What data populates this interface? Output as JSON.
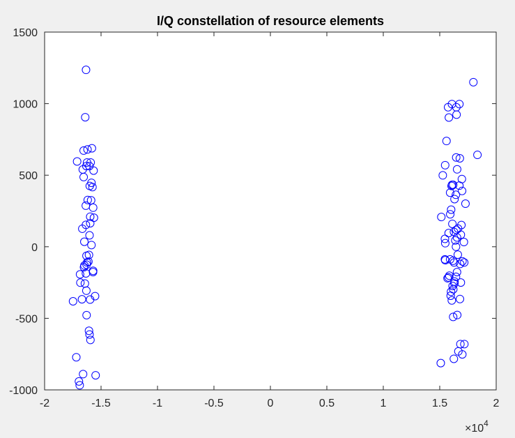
{
  "chart_data": {
    "type": "scatter",
    "title": "I/Q constellation of resource elements",
    "xlabel": "",
    "ylabel": "",
    "xlim": [
      -20000,
      20000
    ],
    "ylim": [
      -1000,
      1500
    ],
    "x_exponent_label": "×10",
    "x_exponent_power": "4",
    "x_ticks": [
      {
        "value": -20000,
        "label": "-2"
      },
      {
        "value": -15000,
        "label": "-1.5"
      },
      {
        "value": -10000,
        "label": "-1"
      },
      {
        "value": -5000,
        "label": "-0.5"
      },
      {
        "value": 0,
        "label": "0"
      },
      {
        "value": 5000,
        "label": "0.5"
      },
      {
        "value": 10000,
        "label": "1"
      },
      {
        "value": 15000,
        "label": "1.5"
      },
      {
        "value": 20000,
        "label": "2"
      }
    ],
    "y_ticks": [
      {
        "value": -1000,
        "label": "-1000"
      },
      {
        "value": -500,
        "label": "-500"
      },
      {
        "value": 0,
        "label": "0"
      },
      {
        "value": 500,
        "label": "500"
      },
      {
        "value": 1000,
        "label": "1000"
      },
      {
        "value": 1500,
        "label": "1500"
      }
    ],
    "grid": false,
    "marker": "circle",
    "marker_color": "#0000ff",
    "series": [
      {
        "name": "resource elements",
        "points": [
          [
            -16330,
            1236
          ],
          [
            -16400,
            905
          ],
          [
            -15810,
            688
          ],
          [
            -16200,
            680
          ],
          [
            -16540,
            672
          ],
          [
            -17120,
            596
          ],
          [
            -16240,
            589
          ],
          [
            -15920,
            589
          ],
          [
            -16300,
            564
          ],
          [
            -16030,
            564
          ],
          [
            -16620,
            540
          ],
          [
            -15660,
            532
          ],
          [
            -16540,
            487
          ],
          [
            -15850,
            447
          ],
          [
            -16000,
            425
          ],
          [
            -15760,
            417
          ],
          [
            -16180,
            327
          ],
          [
            -15880,
            325
          ],
          [
            -16350,
            287
          ],
          [
            -15700,
            273
          ],
          [
            -15960,
            210
          ],
          [
            -15630,
            203
          ],
          [
            -15960,
            164
          ],
          [
            -16340,
            153
          ],
          [
            -16660,
            126
          ],
          [
            -16020,
            80
          ],
          [
            -16480,
            35
          ],
          [
            -15850,
            12
          ],
          [
            -16070,
            -57
          ],
          [
            -16290,
            -63
          ],
          [
            -16120,
            -104
          ],
          [
            -16240,
            -110
          ],
          [
            -16280,
            -125
          ],
          [
            -16470,
            -131
          ],
          [
            -16510,
            -143
          ],
          [
            -15700,
            -168
          ],
          [
            -15710,
            -177
          ],
          [
            -16340,
            -186
          ],
          [
            -16860,
            -193
          ],
          [
            -16430,
            -257
          ],
          [
            -16830,
            -251
          ],
          [
            -16300,
            -307
          ],
          [
            -15530,
            -345
          ],
          [
            -16690,
            -367
          ],
          [
            -15970,
            -369
          ],
          [
            -17480,
            -381
          ],
          [
            -16280,
            -478
          ],
          [
            -16070,
            -587
          ],
          [
            -16020,
            -613
          ],
          [
            -15940,
            -651
          ],
          [
            -17190,
            -772
          ],
          [
            -16590,
            -890
          ],
          [
            -15480,
            -898
          ],
          [
            -16960,
            -941
          ],
          [
            -16890,
            -968
          ],
          [
            17980,
            1150
          ],
          [
            16740,
            997
          ],
          [
            16080,
            997
          ],
          [
            15740,
            975
          ],
          [
            16470,
            975
          ],
          [
            16490,
            923
          ],
          [
            15810,
            903
          ],
          [
            18340,
            642
          ],
          [
            15600,
            739
          ],
          [
            16460,
            624
          ],
          [
            16780,
            618
          ],
          [
            15480,
            570
          ],
          [
            16540,
            541
          ],
          [
            15270,
            499
          ],
          [
            16960,
            473
          ],
          [
            16090,
            433
          ],
          [
            16190,
            433
          ],
          [
            16740,
            427
          ],
          [
            16050,
            425
          ],
          [
            15920,
            378
          ],
          [
            16430,
            363
          ],
          [
            16980,
            390
          ],
          [
            16310,
            333
          ],
          [
            17280,
            301
          ],
          [
            16010,
            259
          ],
          [
            15930,
            227
          ],
          [
            15140,
            208
          ],
          [
            16120,
            160
          ],
          [
            16920,
            152
          ],
          [
            16620,
            127
          ],
          [
            16470,
            118
          ],
          [
            16260,
            104
          ],
          [
            15790,
            96
          ],
          [
            16870,
            84
          ],
          [
            16530,
            65
          ],
          [
            15460,
            55
          ],
          [
            16380,
            44
          ],
          [
            17140,
            33
          ],
          [
            15490,
            25
          ],
          [
            16440,
            0
          ],
          [
            16600,
            -55
          ],
          [
            15920,
            -88
          ],
          [
            15460,
            -88
          ],
          [
            15490,
            -94
          ],
          [
            16180,
            -98
          ],
          [
            17010,
            -102
          ],
          [
            16270,
            -110
          ],
          [
            17170,
            -110
          ],
          [
            16810,
            -120
          ],
          [
            16530,
            -177
          ],
          [
            15850,
            -202
          ],
          [
            16440,
            -210
          ],
          [
            15770,
            -214
          ],
          [
            15690,
            -220
          ],
          [
            16310,
            -243
          ],
          [
            16300,
            -256
          ],
          [
            16870,
            -250
          ],
          [
            16140,
            -274
          ],
          [
            16200,
            -297
          ],
          [
            16000,
            -314
          ],
          [
            15970,
            -342
          ],
          [
            16790,
            -365
          ],
          [
            16070,
            -375
          ],
          [
            16550,
            -477
          ],
          [
            16190,
            -490
          ],
          [
            16830,
            -680
          ],
          [
            17180,
            -680
          ],
          [
            16650,
            -731
          ],
          [
            17000,
            -752
          ],
          [
            16250,
            -783
          ],
          [
            15090,
            -813
          ]
        ]
      }
    ]
  }
}
